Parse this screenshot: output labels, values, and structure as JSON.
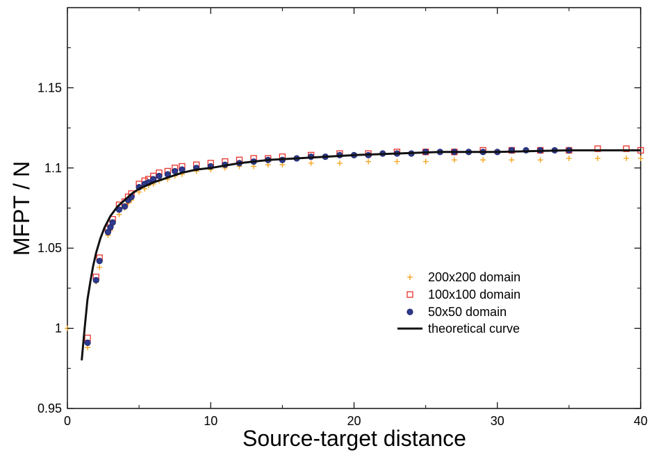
{
  "chart_data": {
    "type": "scatter",
    "title": "",
    "xlabel": "Source-target distance",
    "ylabel": "MFPT / N",
    "xlim": [
      0,
      40
    ],
    "ylim": [
      0.95,
      1.2
    ],
    "xticks": [
      0,
      10,
      20,
      30,
      40
    ],
    "xtick_labels": [
      "0",
      "10",
      "20",
      "30",
      "40"
    ],
    "yticks": [
      0.95,
      1,
      1.05,
      1.1,
      1.15
    ],
    "ytick_labels": [
      "0.95",
      "1",
      "1.05",
      "1.1",
      "1.15"
    ],
    "grid": false,
    "legend_position": "bottom-right",
    "colors": {
      "series_200": "#f5a623",
      "series_100": "#e8302a",
      "series_50": "#2e3a8c",
      "theory": "#111111"
    },
    "series": [
      {
        "name": "200x200 domain",
        "marker": "plus",
        "x": [
          0,
          1.41,
          2,
          2.24,
          2.83,
          3,
          3.16,
          3.61,
          4,
          4.24,
          4.47,
          5,
          5.39,
          5.66,
          6,
          6.4,
          7,
          7.5,
          8,
          9,
          10,
          11,
          12,
          13,
          14,
          15,
          17,
          19,
          21,
          23,
          25,
          27,
          29,
          31,
          33,
          35,
          37,
          39,
          40
        ],
        "y": [
          1.0,
          0.988,
          1.029,
          1.038,
          1.058,
          1.061,
          1.065,
          1.071,
          1.075,
          1.078,
          1.08,
          1.085,
          1.087,
          1.089,
          1.09,
          1.092,
          1.093,
          1.095,
          1.096,
          1.098,
          1.099,
          1.1,
          1.101,
          1.101,
          1.102,
          1.102,
          1.103,
          1.103,
          1.104,
          1.104,
          1.104,
          1.105,
          1.105,
          1.105,
          1.105,
          1.106,
          1.106,
          1.106,
          1.106
        ]
      },
      {
        "name": "100x100 domain",
        "marker": "square",
        "x": [
          1.41,
          2,
          2.24,
          2.83,
          3,
          3.16,
          3.61,
          4,
          4.24,
          4.47,
          5,
          5.39,
          5.66,
          6,
          6.4,
          7,
          7.5,
          8,
          9,
          10,
          11,
          12,
          13,
          14,
          15,
          17,
          19,
          21,
          23,
          25,
          27,
          29,
          31,
          33,
          35,
          37,
          39,
          40
        ],
        "y": [
          0.994,
          1.032,
          1.044,
          1.062,
          1.065,
          1.068,
          1.077,
          1.079,
          1.082,
          1.084,
          1.09,
          1.092,
          1.093,
          1.095,
          1.097,
          1.098,
          1.1,
          1.101,
          1.102,
          1.103,
          1.104,
          1.105,
          1.106,
          1.106,
          1.107,
          1.108,
          1.109,
          1.109,
          1.11,
          1.11,
          1.11,
          1.111,
          1.111,
          1.111,
          1.111,
          1.112,
          1.112,
          1.111
        ]
      },
      {
        "name": "50x50 domain",
        "marker": "circle",
        "x": [
          1.41,
          2,
          2.24,
          2.83,
          3,
          3.16,
          3.61,
          4,
          4.24,
          4.47,
          5,
          5.39,
          5.66,
          6,
          6.4,
          7,
          7.5,
          8,
          9,
          10,
          11,
          12,
          13,
          14,
          15,
          16,
          17,
          18,
          19,
          20,
          21,
          22,
          23,
          24,
          25,
          26,
          27,
          28,
          29,
          30,
          31,
          32,
          33,
          34,
          35
        ],
        "y": [
          0.991,
          1.03,
          1.042,
          1.06,
          1.063,
          1.066,
          1.074,
          1.076,
          1.08,
          1.082,
          1.088,
          1.09,
          1.091,
          1.093,
          1.095,
          1.096,
          1.098,
          1.099,
          1.1,
          1.101,
          1.102,
          1.103,
          1.104,
          1.105,
          1.105,
          1.106,
          1.107,
          1.107,
          1.108,
          1.108,
          1.108,
          1.109,
          1.109,
          1.109,
          1.11,
          1.11,
          1.11,
          1.11,
          1.11,
          1.11,
          1.111,
          1.111,
          1.111,
          1.111,
          1.111
        ]
      },
      {
        "name": "theoretical curve",
        "marker": "line",
        "x": [
          1,
          1.2,
          1.4,
          1.6,
          1.8,
          2,
          2.3,
          2.6,
          3,
          3.5,
          4,
          4.5,
          5,
          6,
          7,
          8,
          9,
          10,
          12,
          14,
          16,
          18,
          20,
          23,
          26,
          30,
          35,
          40
        ],
        "y": [
          0.98,
          1.0,
          1.018,
          1.029,
          1.039,
          1.047,
          1.056,
          1.063,
          1.07,
          1.076,
          1.08,
          1.084,
          1.087,
          1.091,
          1.094,
          1.097,
          1.099,
          1.1,
          1.103,
          1.105,
          1.106,
          1.107,
          1.108,
          1.109,
          1.11,
          1.11,
          1.111,
          1.111
        ]
      }
    ]
  }
}
